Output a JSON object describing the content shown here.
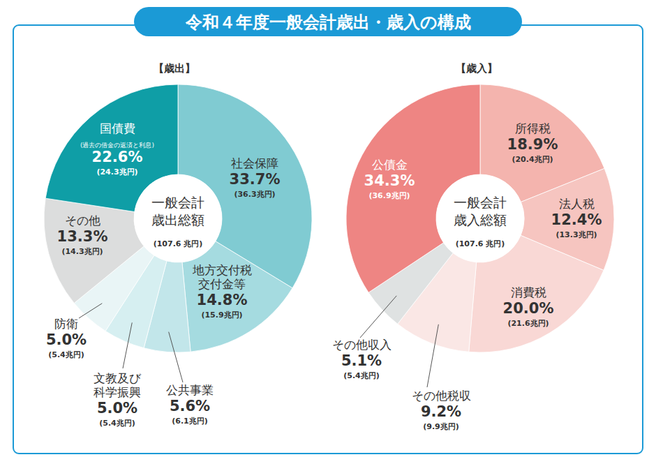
{
  "title": "令和４年度一般会計歳出・歳入の構成",
  "chart_data": [
    {
      "type": "pie",
      "title": "【歳出】",
      "center_label": "一般会計\n歳出総額",
      "total_label": "(107.6 兆円)",
      "categories": [
        "社会保障",
        "地方交付税\n交付金等",
        "公共事業",
        "文教及び\n科学振興",
        "防衛",
        "その他",
        "国債費"
      ],
      "sublabels": [
        null,
        null,
        null,
        null,
        null,
        null,
        "(過去の借金の返済と利息)"
      ],
      "values": [
        33.7,
        14.8,
        5.6,
        5.0,
        5.0,
        13.3,
        22.6
      ],
      "value_labels": [
        "33.7%",
        "14.8%",
        "5.6%",
        "5.0%",
        "5.0%",
        "13.3%",
        "22.6%"
      ],
      "amount_labels": [
        "(36.3兆円)",
        "(15.9兆円)",
        "(6.1兆円)",
        "(5.4兆円)",
        "(5.4兆円)",
        "(14.3兆円)",
        "(24.3兆円)"
      ],
      "colors": [
        "#80cbd2",
        "#a5dbe0",
        "#c2e6ea",
        "#d6eff1",
        "#e9f5f6",
        "#dcdddd",
        "#0f9ea6"
      ],
      "data_labels": true
    },
    {
      "type": "pie",
      "title": "【歳入】",
      "center_label": "一般会計\n歳入総額",
      "total_label": "(107.6 兆円)",
      "categories": [
        "所得税",
        "法人税",
        "消費税",
        "その他税収",
        "その他収入",
        "公債金"
      ],
      "values": [
        18.9,
        12.4,
        20.0,
        9.2,
        5.1,
        34.3
      ],
      "value_labels": [
        "18.9%",
        "12.4%",
        "20.0%",
        "9.2%",
        "5.1%",
        "34.3%"
      ],
      "amount_labels": [
        "(20.4兆円)",
        "(13.3兆円)",
        "(21.6兆円)",
        "(9.9兆円)",
        "(5.4兆円)",
        "(36.9兆円)"
      ],
      "colors": [
        "#f4b4ae",
        "#f6c5c0",
        "#f9d8d5",
        "#fae7e5",
        "#dfe2e2",
        "#ee8583"
      ],
      "data_labels": true
    }
  ]
}
